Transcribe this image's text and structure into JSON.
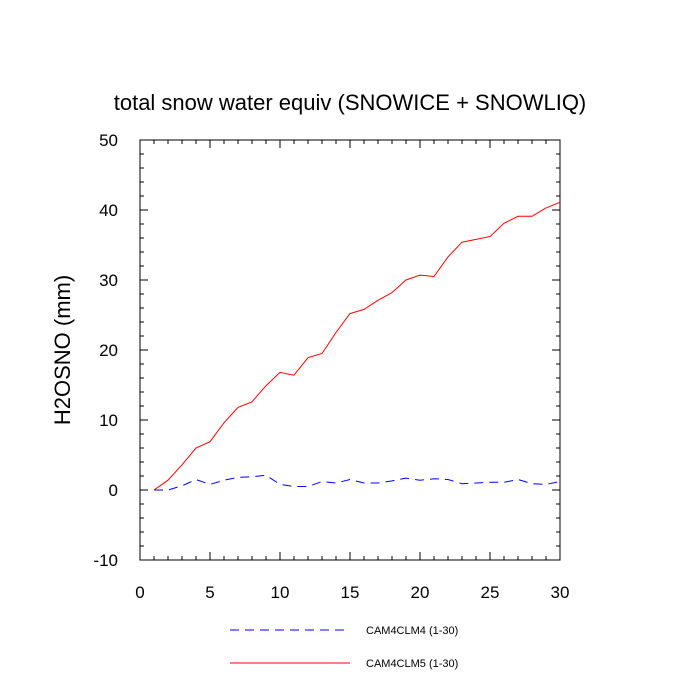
{
  "chart_data": {
    "type": "line",
    "title": "total snow water equiv (SNOWICE + SNOWLIQ)",
    "xlabel": "",
    "ylabel": "H2OSNO  (mm)",
    "xlim": [
      0,
      30
    ],
    "ylim": [
      -10,
      50
    ],
    "xticks": [
      0,
      5,
      10,
      15,
      20,
      25,
      30
    ],
    "xtick_labels": [
      "0",
      "5",
      "10",
      "15",
      "20",
      "25",
      "30"
    ],
    "yticks": [
      -10,
      0,
      10,
      20,
      30,
      40,
      50
    ],
    "ytick_labels": [
      "-10",
      "0",
      "10",
      "20",
      "30",
      "40",
      "50"
    ],
    "grid": false,
    "legend_position": "bottom",
    "x": [
      1,
      2,
      3,
      4,
      5,
      6,
      7,
      8,
      9,
      10,
      11,
      12,
      13,
      14,
      15,
      16,
      17,
      18,
      19,
      20,
      21,
      22,
      23,
      24,
      25,
      26,
      27,
      28,
      29,
      30
    ],
    "series": [
      {
        "name": "CAM4CLM4 (1-30)",
        "color": "#0000ff",
        "dash": "dashed",
        "values": [
          0.0,
          0.0,
          0.6,
          1.5,
          0.8,
          1.4,
          1.8,
          1.9,
          2.1,
          0.8,
          0.5,
          0.5,
          1.2,
          1.0,
          1.5,
          1.0,
          1.0,
          1.3,
          1.7,
          1.4,
          1.6,
          1.5,
          0.9,
          1.0,
          1.1,
          1.1,
          1.5,
          0.9,
          0.8,
          1.2
        ]
      },
      {
        "name": "CAM4CLM5 (1-30)",
        "color": "#ff0000",
        "dash": "solid",
        "values": [
          0.0,
          1.4,
          3.6,
          6.0,
          6.9,
          9.6,
          11.8,
          12.6,
          14.9,
          16.8,
          16.4,
          18.9,
          19.5,
          22.5,
          25.2,
          25.8,
          27.1,
          28.2,
          30.0,
          30.7,
          30.5,
          33.3,
          35.4,
          35.8,
          36.2,
          38.1,
          39.1,
          39.1,
          40.3,
          41.1
        ]
      }
    ]
  }
}
